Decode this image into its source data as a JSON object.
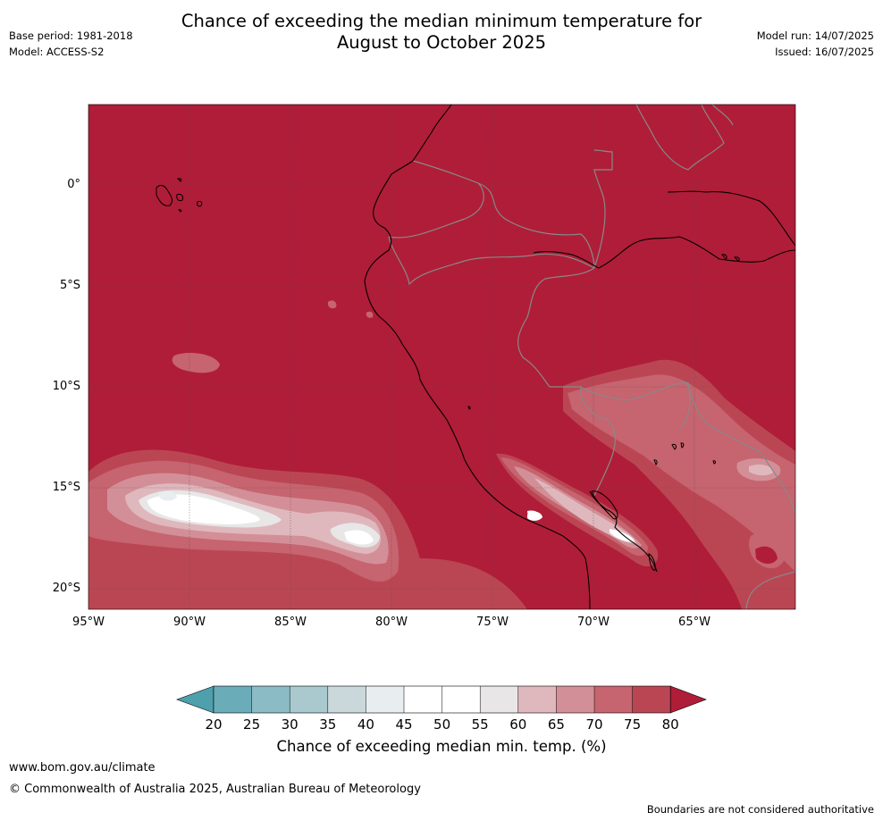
{
  "title_line1": "Chance of exceeding the median minimum temperature for",
  "title_line2": "August to October 2025",
  "base_period": "Base period: 1981-2018",
  "model": "Model: ACCESS-S2",
  "model_run": "Model run: 14/07/2025",
  "issued": "Issued: 16/07/2025",
  "lat_labels": [
    "0°",
    "5°S",
    "10°S",
    "15°S",
    "20°S"
  ],
  "lon_labels": [
    "95°W",
    "90°W",
    "85°W",
    "80°W",
    "75°W",
    "70°W",
    "65°W"
  ],
  "colorbar": {
    "ticks": [
      "20",
      "25",
      "30",
      "35",
      "40",
      "45",
      "50",
      "55",
      "60",
      "65",
      "70",
      "75",
      "80"
    ],
    "colors": [
      "#4ea0ad",
      "#6aadb9",
      "#8bbcc6",
      "#a9c9cf",
      "#cad8db",
      "#e8eef0",
      "#ffffff",
      "#ffffff",
      "#e8e6e7",
      "#dfb8bd",
      "#d38f97",
      "#c6646f",
      "#bb4653",
      "#b01d38"
    ],
    "label": "Chance of exceeding median min. temp. (%)"
  },
  "footer": {
    "url": "www.bom.gov.au/climate",
    "copyright": "© Commonwealth of Australia 2025, Australian Bureau of Meteorology",
    "disclaimer": "Boundaries are not considered authoritative"
  }
}
